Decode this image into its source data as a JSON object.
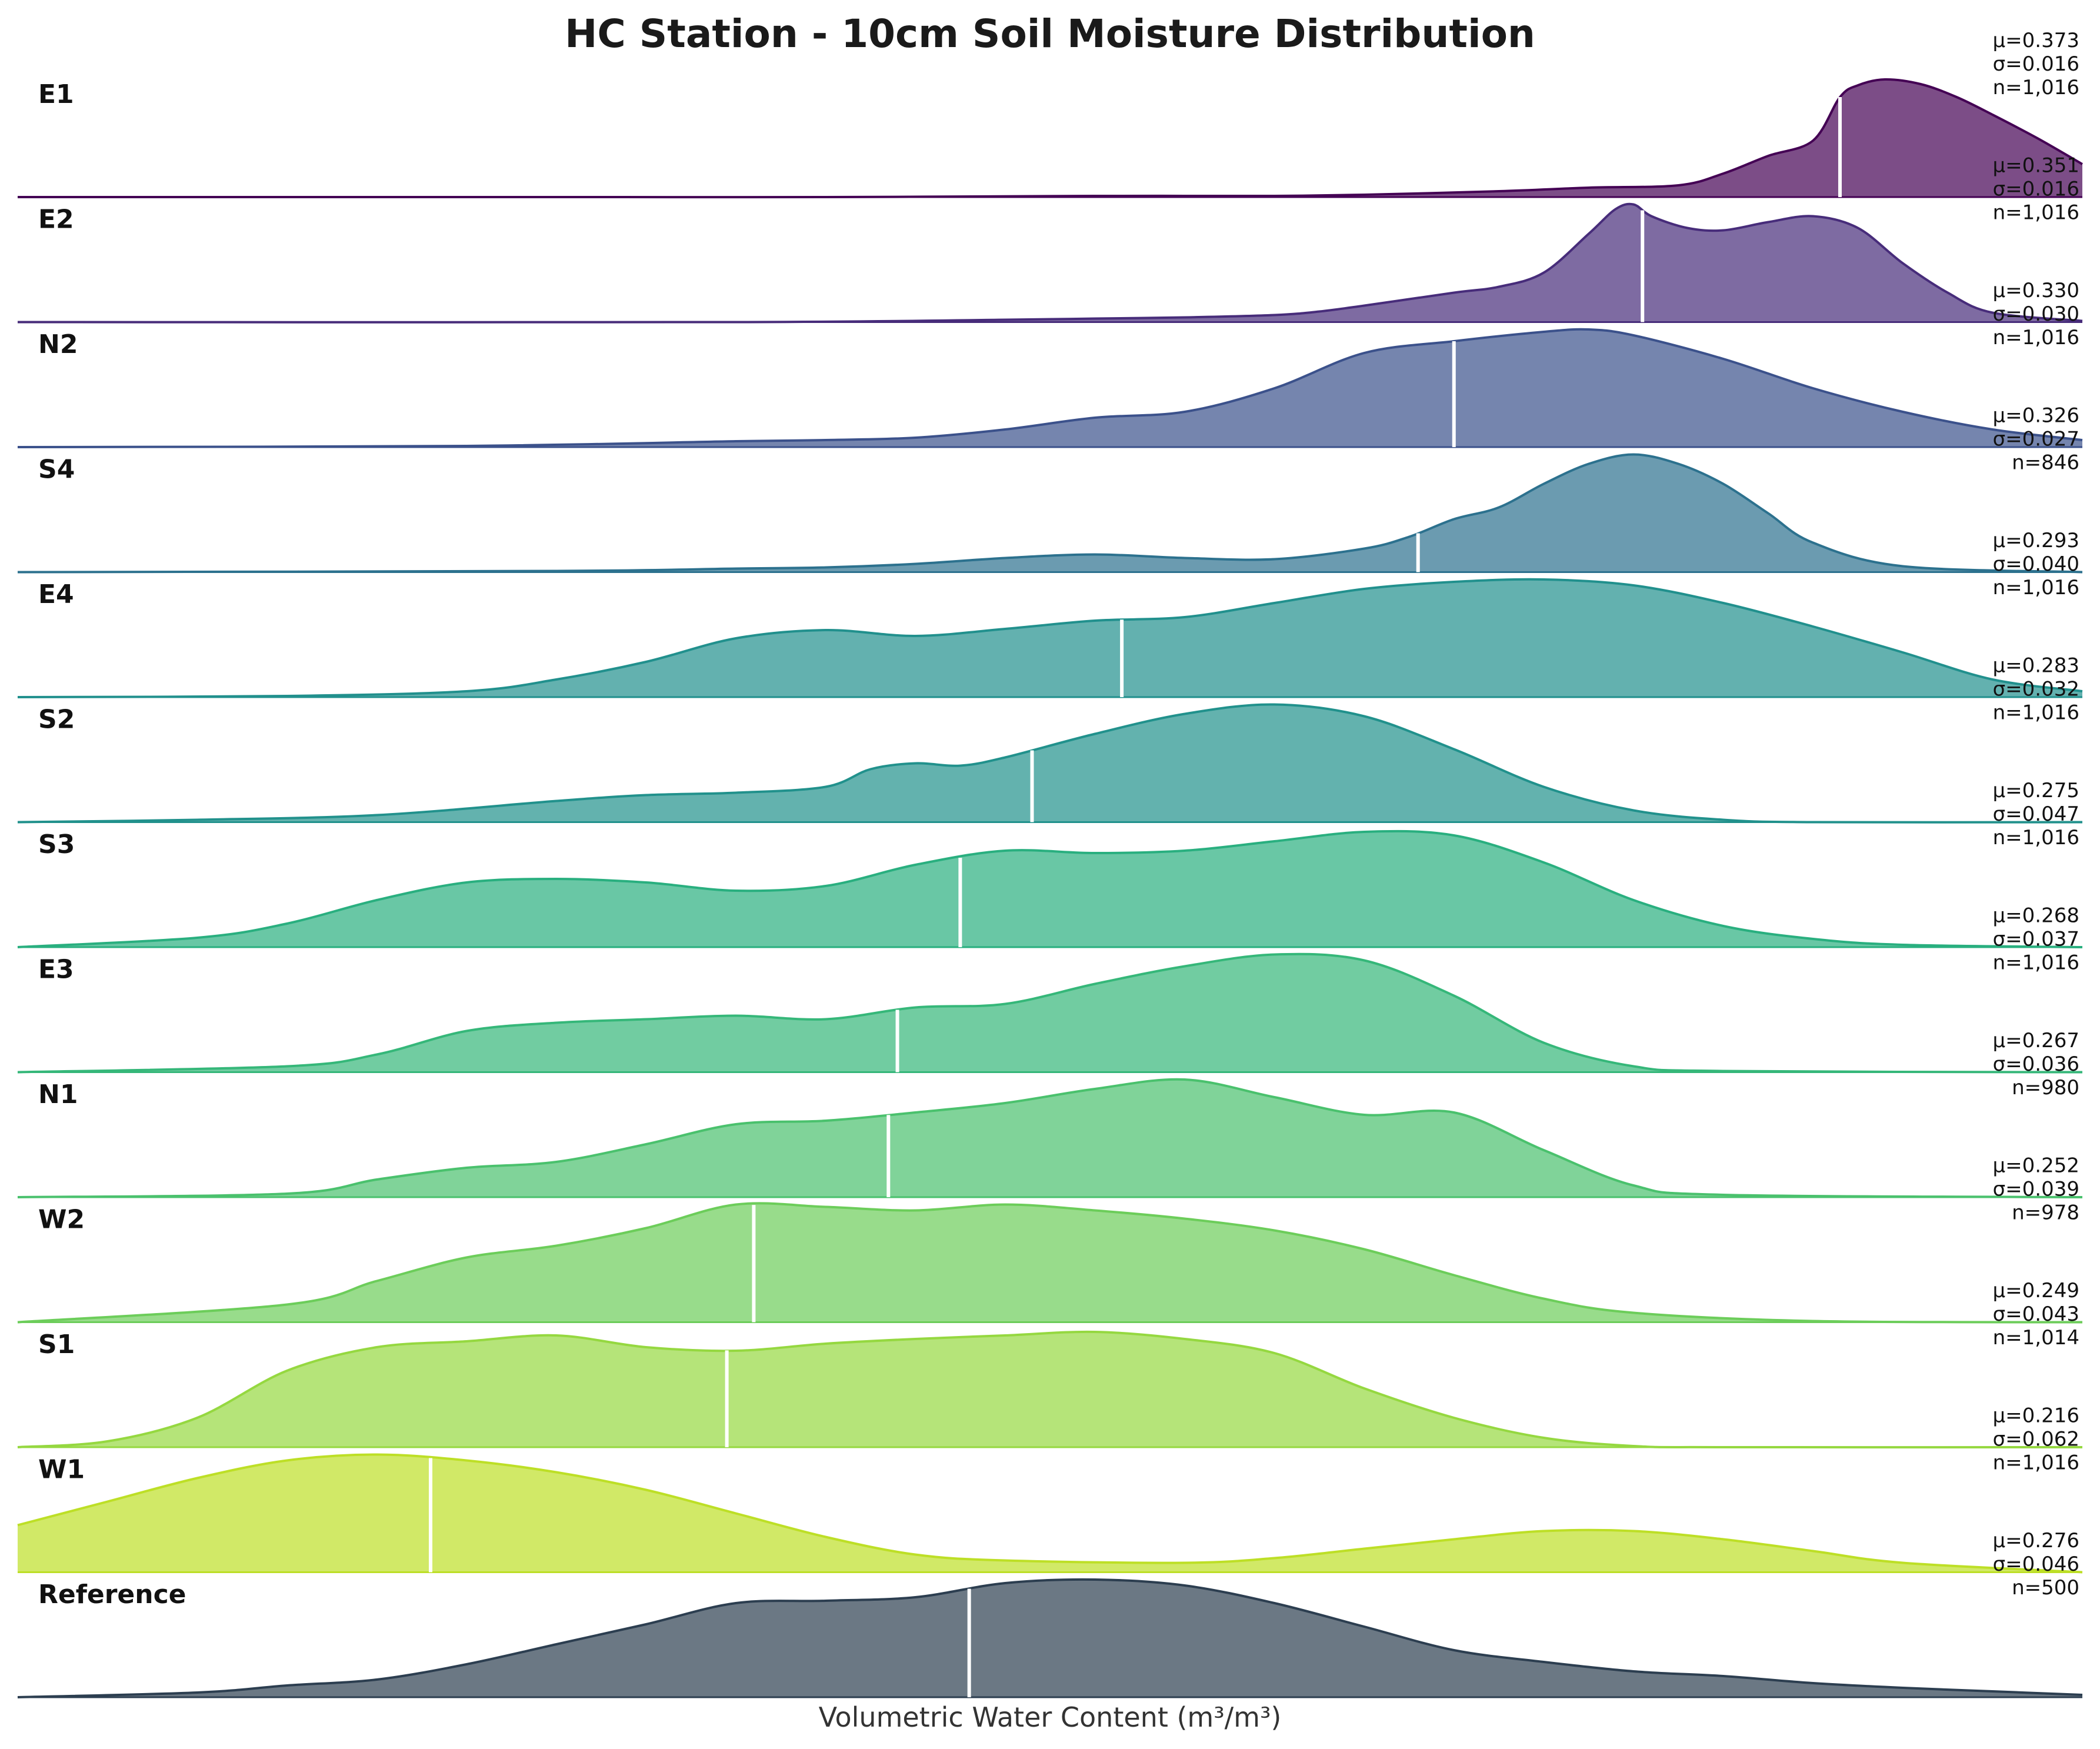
{
  "chart_data": {
    "type": "ridgeline",
    "title": "HC Station - 10cm Soil Moisture Distribution",
    "xlabel": "Volumetric Water Content (m³/m³)",
    "ylabel": "",
    "xlim": [
      0.17,
      0.4
    ],
    "grid": false,
    "series": [
      {
        "name": "E1",
        "color": "#440154",
        "mu_text": "μ=0.373",
        "sigma_text": "σ=0.016",
        "n_text": "n=1,016",
        "mean": 0.373,
        "x": [
          0.17,
          0.2,
          0.23,
          0.26,
          0.29,
          0.3,
          0.31,
          0.32,
          0.335,
          0.345,
          0.355,
          0.36,
          0.365,
          0.37,
          0.373,
          0.375,
          0.378,
          0.382,
          0.386,
          0.39,
          0.395,
          0.4
        ],
        "y": [
          0.0,
          0.0,
          0.0,
          0.0,
          0.01,
          0.01,
          0.01,
          0.02,
          0.05,
          0.08,
          0.1,
          0.2,
          0.35,
          0.48,
          0.85,
          0.95,
          1.0,
          0.96,
          0.85,
          0.7,
          0.5,
          0.28
        ]
      },
      {
        "name": "E2",
        "color": "#472c7a",
        "mu_text": "μ=0.351",
        "sigma_text": "σ=0.016",
        "n_text": "n=1,016",
        "mean": 0.351,
        "x": [
          0.17,
          0.25,
          0.28,
          0.29,
          0.3,
          0.31,
          0.315,
          0.32,
          0.33,
          0.335,
          0.34,
          0.345,
          0.348,
          0.35,
          0.352,
          0.356,
          0.36,
          0.365,
          0.37,
          0.375,
          0.38,
          0.385,
          0.39,
          0.4
        ],
        "y": [
          0.0,
          0.0,
          0.02,
          0.03,
          0.04,
          0.06,
          0.09,
          0.14,
          0.25,
          0.3,
          0.42,
          0.75,
          0.96,
          1.0,
          0.9,
          0.8,
          0.78,
          0.85,
          0.9,
          0.8,
          0.5,
          0.25,
          0.08,
          0.01
        ]
      },
      {
        "name": "N2",
        "color": "#3b518b",
        "mu_text": "μ=0.330",
        "sigma_text": "σ=0.030",
        "n_text": "n=1,016",
        "mean": 0.33,
        "x": [
          0.17,
          0.22,
          0.25,
          0.26,
          0.27,
          0.28,
          0.29,
          0.3,
          0.31,
          0.32,
          0.33,
          0.34,
          0.345,
          0.35,
          0.36,
          0.37,
          0.38,
          0.39,
          0.4
        ],
        "y": [
          0.0,
          0.01,
          0.05,
          0.06,
          0.08,
          0.15,
          0.25,
          0.3,
          0.5,
          0.8,
          0.9,
          0.98,
          1.0,
          0.95,
          0.75,
          0.5,
          0.3,
          0.15,
          0.06
        ]
      },
      {
        "name": "S4",
        "color": "#2c718e",
        "mu_text": "μ=0.326",
        "sigma_text": "σ=0.027",
        "n_text": "n=846",
        "mean": 0.326,
        "x": [
          0.17,
          0.23,
          0.25,
          0.26,
          0.27,
          0.28,
          0.29,
          0.3,
          0.31,
          0.32,
          0.325,
          0.33,
          0.335,
          0.34,
          0.345,
          0.35,
          0.355,
          0.36,
          0.365,
          0.37,
          0.38,
          0.4
        ],
        "y": [
          0.0,
          0.01,
          0.03,
          0.04,
          0.07,
          0.12,
          0.15,
          0.12,
          0.11,
          0.2,
          0.3,
          0.45,
          0.55,
          0.75,
          0.92,
          1.0,
          0.92,
          0.75,
          0.5,
          0.25,
          0.05,
          0.0
        ]
      },
      {
        "name": "E4",
        "color": "#21908d",
        "mu_text": "μ=0.293",
        "sigma_text": "σ=0.040",
        "n_text": "n=1,016",
        "mean": 0.293,
        "x": [
          0.17,
          0.2,
          0.22,
          0.23,
          0.24,
          0.25,
          0.26,
          0.27,
          0.28,
          0.29,
          0.3,
          0.31,
          0.32,
          0.33,
          0.34,
          0.35,
          0.36,
          0.37,
          0.38,
          0.39,
          0.4
        ],
        "y": [
          0.0,
          0.01,
          0.05,
          0.15,
          0.3,
          0.5,
          0.57,
          0.52,
          0.58,
          0.65,
          0.68,
          0.8,
          0.92,
          0.98,
          1.0,
          0.95,
          0.8,
          0.6,
          0.38,
          0.15,
          0.05
        ]
      },
      {
        "name": "S2",
        "color": "#21918c",
        "mu_text": "μ=0.283",
        "sigma_text": "σ=0.032",
        "n_text": "n=1,016",
        "mean": 0.283,
        "x": [
          0.17,
          0.19,
          0.21,
          0.23,
          0.24,
          0.25,
          0.26,
          0.265,
          0.27,
          0.275,
          0.28,
          0.29,
          0.3,
          0.31,
          0.32,
          0.33,
          0.34,
          0.35,
          0.36,
          0.37,
          0.4
        ],
        "y": [
          0.0,
          0.02,
          0.06,
          0.18,
          0.23,
          0.25,
          0.3,
          0.45,
          0.5,
          0.48,
          0.55,
          0.75,
          0.92,
          1.0,
          0.9,
          0.62,
          0.3,
          0.1,
          0.02,
          0.0,
          0.0
        ]
      },
      {
        "name": "S3",
        "color": "#29af7f",
        "mu_text": "μ=0.275",
        "sigma_text": "σ=0.047",
        "n_text": "n=1,016",
        "mean": 0.275,
        "x": [
          0.17,
          0.19,
          0.2,
          0.21,
          0.22,
          0.23,
          0.24,
          0.25,
          0.26,
          0.27,
          0.28,
          0.29,
          0.3,
          0.31,
          0.32,
          0.33,
          0.34,
          0.35,
          0.36,
          0.37,
          0.38,
          0.4
        ],
        "y": [
          0.0,
          0.08,
          0.2,
          0.4,
          0.55,
          0.58,
          0.55,
          0.48,
          0.52,
          0.7,
          0.82,
          0.8,
          0.82,
          0.9,
          0.98,
          0.95,
          0.72,
          0.4,
          0.18,
          0.07,
          0.02,
          0.0
        ]
      },
      {
        "name": "E3",
        "color": "#35b779",
        "mu_text": "μ=0.268",
        "sigma_text": "σ=0.037",
        "n_text": "n=1,016",
        "mean": 0.268,
        "x": [
          0.17,
          0.2,
          0.21,
          0.22,
          0.23,
          0.24,
          0.25,
          0.26,
          0.27,
          0.28,
          0.29,
          0.3,
          0.31,
          0.32,
          0.33,
          0.34,
          0.35,
          0.36,
          0.4
        ],
        "y": [
          0.0,
          0.05,
          0.15,
          0.35,
          0.42,
          0.45,
          0.48,
          0.45,
          0.55,
          0.58,
          0.75,
          0.9,
          1.0,
          0.95,
          0.65,
          0.25,
          0.05,
          0.01,
          0.0
        ]
      },
      {
        "name": "N1",
        "color": "#4ac16d",
        "mu_text": "μ=0.267",
        "sigma_text": "σ=0.036",
        "n_text": "n=980",
        "mean": 0.267,
        "x": [
          0.17,
          0.2,
          0.21,
          0.22,
          0.23,
          0.24,
          0.25,
          0.26,
          0.27,
          0.28,
          0.29,
          0.3,
          0.31,
          0.32,
          0.33,
          0.34,
          0.35,
          0.36,
          0.4
        ],
        "y": [
          0.0,
          0.03,
          0.15,
          0.25,
          0.3,
          0.45,
          0.62,
          0.65,
          0.72,
          0.8,
          0.92,
          1.0,
          0.85,
          0.7,
          0.72,
          0.4,
          0.1,
          0.02,
          0.0
        ]
      },
      {
        "name": "W2",
        "color": "#6ccd5a",
        "mu_text": "μ=0.252",
        "sigma_text": "σ=0.039",
        "n_text": "n=978",
        "mean": 0.252,
        "x": [
          0.17,
          0.2,
          0.21,
          0.22,
          0.23,
          0.24,
          0.25,
          0.26,
          0.27,
          0.28,
          0.29,
          0.3,
          0.31,
          0.32,
          0.33,
          0.34,
          0.35,
          0.37,
          0.4
        ],
        "y": [
          0.0,
          0.15,
          0.35,
          0.55,
          0.65,
          0.8,
          1.0,
          0.98,
          0.95,
          1.0,
          0.95,
          0.88,
          0.78,
          0.62,
          0.4,
          0.2,
          0.08,
          0.01,
          0.0
        ]
      },
      {
        "name": "S1",
        "color": "#95d840",
        "mu_text": "μ=0.249",
        "sigma_text": "σ=0.043",
        "n_text": "n=1,014",
        "mean": 0.249,
        "x": [
          0.17,
          0.18,
          0.19,
          0.2,
          0.21,
          0.22,
          0.23,
          0.24,
          0.25,
          0.26,
          0.27,
          0.28,
          0.29,
          0.3,
          0.31,
          0.32,
          0.33,
          0.34,
          0.35,
          0.36,
          0.4
        ],
        "y": [
          0.0,
          0.05,
          0.25,
          0.65,
          0.85,
          0.9,
          0.95,
          0.85,
          0.82,
          0.88,
          0.92,
          0.95,
          0.98,
          0.92,
          0.8,
          0.5,
          0.25,
          0.08,
          0.01,
          0.0,
          0.0
        ]
      },
      {
        "name": "W1",
        "color": "#bddf26",
        "mu_text": "μ=0.216",
        "sigma_text": "σ=0.062",
        "n_text": "n=1,016",
        "mean": 0.216,
        "x": [
          0.17,
          0.18,
          0.19,
          0.2,
          0.21,
          0.22,
          0.23,
          0.24,
          0.25,
          0.26,
          0.27,
          0.28,
          0.3,
          0.31,
          0.32,
          0.33,
          0.34,
          0.35,
          0.36,
          0.37,
          0.38,
          0.4
        ],
        "y": [
          0.4,
          0.6,
          0.8,
          0.95,
          1.0,
          0.95,
          0.85,
          0.7,
          0.5,
          0.3,
          0.15,
          0.1,
          0.08,
          0.12,
          0.2,
          0.28,
          0.35,
          0.35,
          0.28,
          0.18,
          0.08,
          0.0
        ]
      },
      {
        "name": "Reference",
        "color": "#2c3e50",
        "mu_text": "μ=0.276",
        "sigma_text": "σ=0.046",
        "n_text": "n=500",
        "mean": 0.276,
        "x": [
          0.17,
          0.19,
          0.2,
          0.21,
          0.22,
          0.23,
          0.24,
          0.25,
          0.26,
          0.27,
          0.28,
          0.29,
          0.3,
          0.31,
          0.32,
          0.33,
          0.34,
          0.35,
          0.36,
          0.37,
          0.38,
          0.39,
          0.4
        ],
        "y": [
          0.0,
          0.04,
          0.1,
          0.15,
          0.28,
          0.45,
          0.62,
          0.8,
          0.82,
          0.85,
          0.97,
          1.0,
          0.95,
          0.8,
          0.6,
          0.4,
          0.3,
          0.22,
          0.18,
          0.12,
          0.08,
          0.05,
          0.02
        ]
      }
    ]
  }
}
